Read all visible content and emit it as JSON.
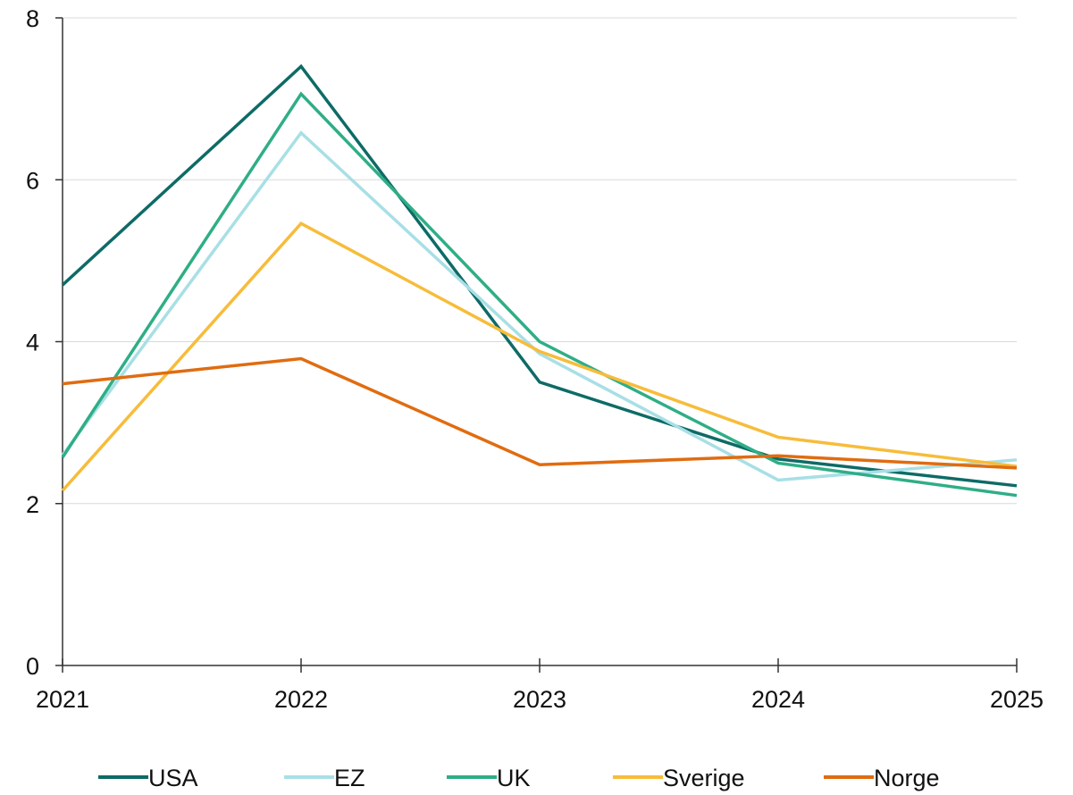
{
  "chart_data": {
    "type": "line",
    "title": "",
    "xlabel": "",
    "ylabel": "",
    "x": [
      "2021",
      "2022",
      "2023",
      "2024",
      "2025"
    ],
    "ylim": [
      0,
      8
    ],
    "yticks": [
      "0",
      "2",
      "4",
      "6",
      "8"
    ],
    "grid": "horizontal",
    "legend_position": "bottom",
    "series": [
      {
        "name": "USA",
        "color": "#0e6b66",
        "values": [
          4.7,
          7.4,
          3.5,
          2.55,
          2.22
        ]
      },
      {
        "name": "EZ",
        "color": "#a8dfe6",
        "values": [
          2.6,
          6.58,
          3.85,
          2.29,
          2.54
        ]
      },
      {
        "name": "UK",
        "color": "#2fae86",
        "values": [
          2.57,
          7.06,
          4.0,
          2.5,
          2.1
        ]
      },
      {
        "name": "Sverige",
        "color": "#f7bc3a",
        "values": [
          2.16,
          5.46,
          3.88,
          2.82,
          2.46
        ]
      },
      {
        "name": "Norge",
        "color": "#e06c10",
        "values": [
          3.48,
          3.79,
          2.48,
          2.59,
          2.44
        ]
      }
    ]
  }
}
